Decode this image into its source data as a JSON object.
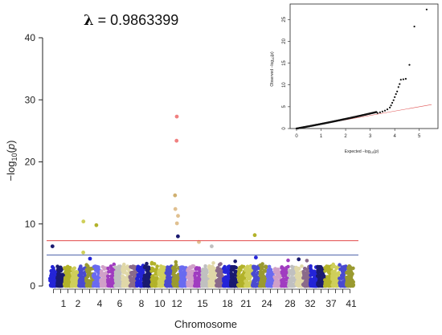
{
  "lambda": {
    "symbol": "λ",
    "text": "= 0.9863399"
  },
  "chart_data": [
    {
      "type": "scatter",
      "subtype": "manhattan",
      "xlabel": "Chromosome",
      "ylabel": "−log10(p)",
      "ylim": [
        0,
        40
      ],
      "yticks": [
        0,
        10,
        20,
        30,
        40
      ],
      "xtick_labels": [
        "1",
        "2",
        "4",
        "6",
        "8",
        "10",
        "12",
        "15",
        "18",
        "21",
        "24",
        "28",
        "32",
        "37",
        "41"
      ],
      "thresholds": [
        {
          "value": 7.3,
          "color": "#e34a4a"
        },
        {
          "value": 5.0,
          "color": "#4a5fa8"
        }
      ],
      "chromosomes": 42,
      "palette": [
        "#2424d8",
        "#1a1a70",
        "#b2b22a",
        "#cfcf5a",
        "#4a4ad0",
        "#9a9a30",
        "#6a6af0",
        "#d0a0c8",
        "#a03cc0",
        "#c0c0c0",
        "#e0d8a8",
        "#8a6a8a"
      ],
      "highlighted_points": [
        {
          "chr": 1,
          "y": 6.4,
          "color": "#1a1a70"
        },
        {
          "chr": 5,
          "y": 10.4,
          "color": "#cfcf5a"
        },
        {
          "chr": 5,
          "y": 5.4,
          "color": "#cfcf5a"
        },
        {
          "chr": 6,
          "y": 4.4,
          "color": "#2424d8"
        },
        {
          "chr": 7,
          "y": 9.8,
          "color": "#b2b22a"
        },
        {
          "chr": 18,
          "y": 27.3,
          "color": "#f08080"
        },
        {
          "chr": 18,
          "y": 23.4,
          "color": "#f08080"
        },
        {
          "chr": 18,
          "y": 14.6,
          "color": "#d0b070"
        },
        {
          "chr": 18,
          "y": 12.4,
          "color": "#e0c090"
        },
        {
          "chr": 18,
          "y": 11.3,
          "color": "#e0c090"
        },
        {
          "chr": 18,
          "y": 10.1,
          "color": "#e0c090"
        },
        {
          "chr": 18,
          "y": 8.0,
          "color": "#1a1a70"
        },
        {
          "chr": 21,
          "y": 7.1,
          "color": "#e0c090"
        },
        {
          "chr": 23,
          "y": 6.4,
          "color": "#c0c0c0"
        },
        {
          "chr": 29,
          "y": 8.2,
          "color": "#b2b22a"
        },
        {
          "chr": 29,
          "y": 4.6,
          "color": "#2424d8"
        },
        {
          "chr": 35,
          "y": 4.3,
          "color": "#1a1a70"
        }
      ]
    },
    {
      "type": "scatter",
      "subtype": "qq",
      "xlabel": "Expected −log10(p)",
      "ylabel": "Observed −log10(p)",
      "xlim": [
        0,
        5.5
      ],
      "ylim": [
        0,
        28
      ],
      "xticks": [
        0,
        1,
        2,
        3,
        4,
        5
      ],
      "yticks": [
        0,
        5,
        10,
        15,
        20,
        25
      ],
      "reference_line": {
        "color": "#e05050",
        "slope": 1
      },
      "points": [
        [
          3.3,
          3.55
        ],
        [
          3.4,
          3.7
        ],
        [
          3.5,
          3.9
        ],
        [
          3.6,
          4.1
        ],
        [
          3.7,
          4.4
        ],
        [
          3.8,
          4.8
        ],
        [
          3.85,
          5.3
        ],
        [
          3.9,
          5.9
        ],
        [
          3.95,
          6.5
        ],
        [
          4.0,
          7.2
        ],
        [
          4.05,
          7.9
        ],
        [
          4.1,
          8.5
        ],
        [
          4.15,
          9.5
        ],
        [
          4.2,
          10.2
        ],
        [
          4.25,
          11.2
        ],
        [
          4.35,
          11.3
        ],
        [
          4.45,
          11.4
        ],
        [
          4.6,
          14.6
        ],
        [
          4.8,
          23.4
        ],
        [
          5.3,
          27.3
        ]
      ]
    }
  ]
}
